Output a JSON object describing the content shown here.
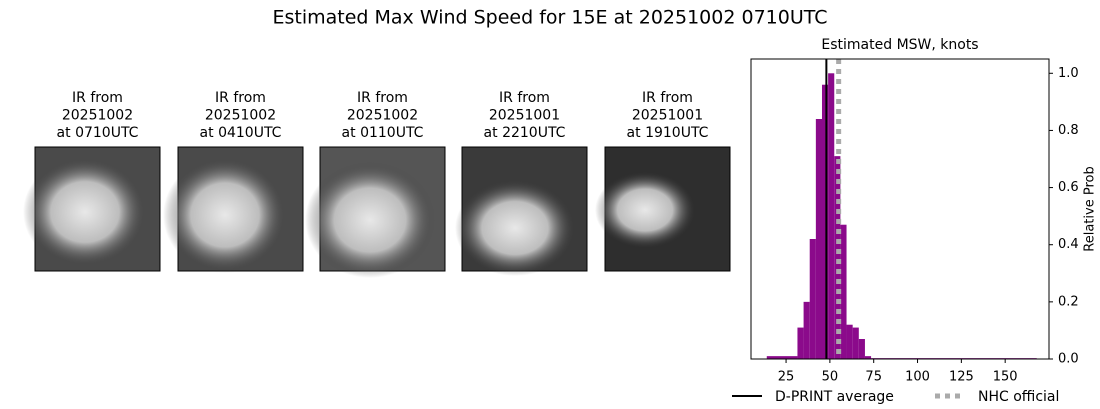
{
  "title": "Estimated Max Wind Speed for 15E at 20251002 0710UTC",
  "panels": [
    {
      "lines": [
        "IR from",
        "20251002",
        "at 0710UTC"
      ]
    },
    {
      "lines": [
        "IR from",
        "20251002",
        "at 0410UTC"
      ]
    },
    {
      "lines": [
        "IR from",
        "20251002",
        "at 0110UTC"
      ]
    },
    {
      "lines": [
        "IR from",
        "20251001",
        "at 2210UTC"
      ]
    },
    {
      "lines": [
        "IR from",
        "20251001",
        "at 1910UTC"
      ]
    }
  ],
  "chart_data": {
    "type": "histogram",
    "title": "Estimated MSW, knots",
    "bins": [
      14,
      31.5,
      35,
      38.5,
      42,
      45.5,
      49,
      52.5,
      56,
      59.5,
      63,
      66.5,
      70,
      73.5,
      168
    ],
    "values": [
      0.01,
      0.11,
      0.2,
      0.42,
      0.84,
      0.96,
      1.0,
      0.71,
      0.47,
      0.12,
      0.11,
      0.07,
      0.01,
      0.003
    ],
    "color": "#8b0a8b",
    "xlim": [
      5,
      175
    ],
    "xticks": [
      25,
      50,
      75,
      100,
      125,
      150
    ],
    "ylim": [
      0,
      1.05
    ],
    "yticks": [
      {
        "value": 0,
        "label": "0.0"
      },
      0.2,
      0.4,
      0.6,
      0.8,
      {
        "value": 1,
        "label": "1.0"
      }
    ],
    "y_axis_side": "right",
    "ylabel": "Relative Prob",
    "lines": [
      {
        "name": "D-PRINT average",
        "value": 48,
        "color": "#000000",
        "style": "solid"
      },
      {
        "name": "NHC official",
        "value": 55,
        "color": "#aaaaaa",
        "style": "dotted"
      }
    ]
  }
}
